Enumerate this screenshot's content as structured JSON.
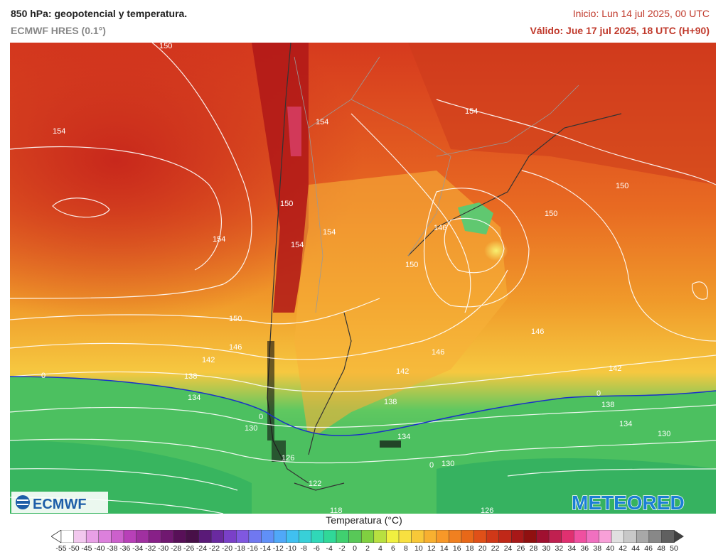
{
  "header": {
    "title": "850 hPa: geopotencial y temperatura.",
    "model": "ECMWF HRES (0.1°)",
    "init": "Inicio: Lun 14 jul 2025, 00 UTC",
    "valid": "Válido: Jue 17 jul 2025, 18 UTC (H+90)"
  },
  "logos": {
    "left": "ECMWF",
    "right": "METEORED"
  },
  "map": {
    "contour_labels": [
      "150",
      "154",
      "154",
      "150",
      "154",
      "154",
      "154",
      "154",
      "150",
      "150",
      "146",
      "150",
      "146",
      "146",
      "142",
      "142",
      "138",
      "142",
      "138",
      "134",
      "134",
      "138",
      "134",
      "130",
      "130",
      "130",
      "126",
      "122",
      "118",
      "126",
      "146",
      "150",
      "0",
      "0",
      "0",
      "0"
    ]
  },
  "legend": {
    "title": "Temperatura (°C)",
    "ticks": [
      "-55",
      "-50",
      "-45",
      "-40",
      "-38",
      "-36",
      "-34",
      "-32",
      "-30",
      "-28",
      "-26",
      "-24",
      "-22",
      "-20",
      "-18",
      "-16",
      "-14",
      "-12",
      "-10",
      "-8",
      "-6",
      "-4",
      "-2",
      "0",
      "2",
      "4",
      "6",
      "8",
      "10",
      "12",
      "14",
      "16",
      "18",
      "20",
      "22",
      "24",
      "26",
      "28",
      "30",
      "32",
      "34",
      "36",
      "38",
      "40",
      "42",
      "44",
      "46",
      "48",
      "50"
    ],
    "colors": [
      "#ffffff",
      "#f2c8ee",
      "#e8a0e6",
      "#dc80dc",
      "#cc60cc",
      "#b840b8",
      "#a030a0",
      "#882088",
      "#701870",
      "#581058",
      "#481048",
      "#5a1a78",
      "#6a2aa0",
      "#7a40c8",
      "#8058e0",
      "#7078f0",
      "#6090f8",
      "#50a8f8",
      "#40c0f0",
      "#38d0d8",
      "#30d8b8",
      "#30d898",
      "#40d070",
      "#58c858",
      "#80d040",
      "#b8e040",
      "#f0f040",
      "#f8e040",
      "#f8c838",
      "#f8b030",
      "#f89828",
      "#f08020",
      "#e86818",
      "#e05018",
      "#d03818",
      "#c02818",
      "#a81818",
      "#901010",
      "#a01030",
      "#c02050",
      "#e03070",
      "#f050a0",
      "#f070c0",
      "#f8a0d8",
      "#e0e0e0",
      "#c8c8c8",
      "#a8a8a8",
      "#888888",
      "#606060"
    ]
  }
}
